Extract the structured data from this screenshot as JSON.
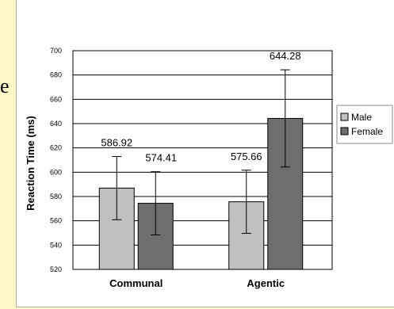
{
  "left_glyph": "e",
  "chart_data": {
    "type": "bar",
    "title": "",
    "xlabel": "",
    "ylabel": "Reaction Time (ms)",
    "ylim": [
      520,
      700
    ],
    "yticks": [
      520,
      540,
      560,
      580,
      600,
      620,
      640,
      660,
      680,
      700
    ],
    "grid": true,
    "legend_position": "right",
    "categories": [
      "Communal",
      "Agentic"
    ],
    "series": [
      {
        "name": "Male",
        "color": "#c0c0c0",
        "values": [
          586.92,
          575.66
        ],
        "errors": [
          26,
          26
        ],
        "labels": [
          "586.92",
          "575.66"
        ]
      },
      {
        "name": "Female",
        "color": "#6e6e6e",
        "values": [
          574.41,
          644.28
        ],
        "errors": [
          26,
          40
        ],
        "labels": [
          "574.41",
          "644.28"
        ]
      }
    ]
  }
}
